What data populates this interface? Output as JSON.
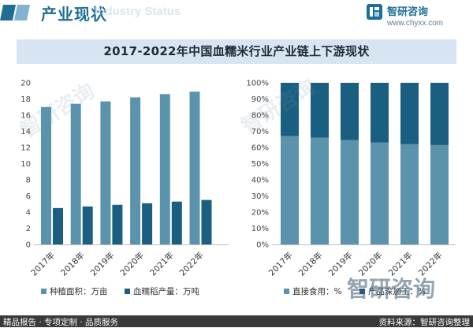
{
  "header": {
    "title": "产业现状",
    "watermark_text": "Industry Status",
    "logo_name": "智研咨询",
    "logo_url": "www.chyxx.com"
  },
  "title": "2017-2022年中国血糯米行业产业链上下游现状",
  "chart_data": [
    {
      "type": "bar",
      "categories": [
        "2017年",
        "2018年",
        "2019年",
        "2020年",
        "2021年",
        "2022年"
      ],
      "series": [
        {
          "name": "种植面积：万亩",
          "values": [
            17.0,
            17.4,
            17.7,
            18.2,
            18.6,
            18.9
          ],
          "color": "#5b93ad"
        },
        {
          "name": "血糯稻产量：万吨",
          "values": [
            4.5,
            4.7,
            4.9,
            5.1,
            5.3,
            5.5
          ],
          "color": "#1a5f80"
        }
      ],
      "ylim": [
        0,
        20
      ],
      "yticks": [
        "0",
        "2",
        "4",
        "6",
        "8",
        "10",
        "12",
        "14",
        "16",
        "18",
        "20"
      ],
      "grid": false,
      "legend": "bottom"
    },
    {
      "type": "bar",
      "stacked": true,
      "percent": true,
      "categories": [
        "2017年",
        "2018年",
        "2019年",
        "2020年",
        "2021年",
        "2022年"
      ],
      "series": [
        {
          "name": "直接食用：%",
          "values": [
            67,
            66,
            64.5,
            63,
            62,
            61.5
          ],
          "color": "#5b93ad"
        },
        {
          "name": "产品深加工：%",
          "values": [
            33,
            34,
            35.5,
            37,
            38,
            38.5
          ],
          "color": "#1a5f80"
        }
      ],
      "ylim": [
        0,
        100
      ],
      "yticks": [
        "0%",
        "10%",
        "20%",
        "30%",
        "40%",
        "50%",
        "60%",
        "70%",
        "80%",
        "90%",
        "100%"
      ],
      "grid": false,
      "legend": "bottom"
    }
  ],
  "watermarks": [
    "智研咨询",
    "智研咨询",
    "智研咨询"
  ],
  "footer": {
    "left": "精品报告 · 专项定制 · 品质服务",
    "right": "资料来源：智研咨询整理"
  }
}
